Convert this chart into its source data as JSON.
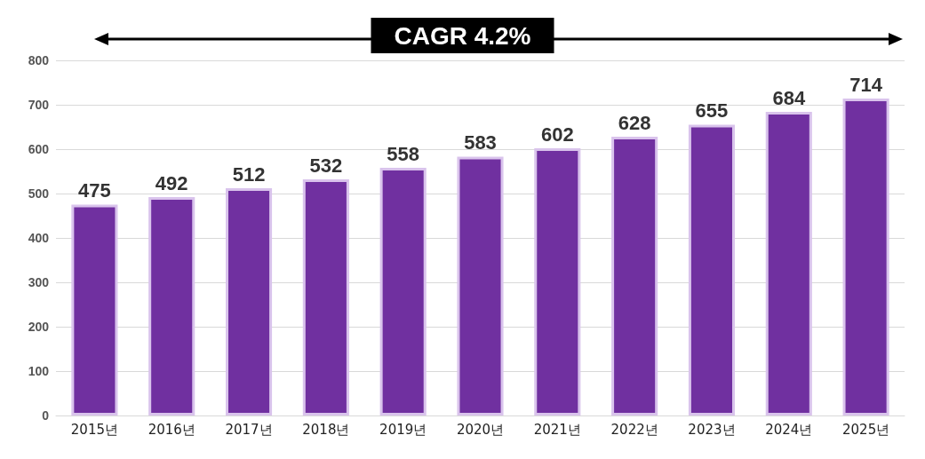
{
  "chart_data": {
    "type": "bar",
    "categories": [
      "2015년",
      "2016년",
      "2017년",
      "2018년",
      "2019년",
      "2020년",
      "2021년",
      "2022년",
      "2023년",
      "2024년",
      "2025년"
    ],
    "values": [
      475,
      492,
      512,
      532,
      558,
      583,
      602,
      628,
      655,
      684,
      714
    ],
    "color": "#7030a0",
    "ylim": [
      0,
      800
    ],
    "yticks": [
      0,
      100,
      200,
      300,
      400,
      500,
      600,
      700,
      800
    ],
    "grid": "y",
    "data_labels": true,
    "annotations": [
      "CAGR 4.2%"
    ]
  }
}
